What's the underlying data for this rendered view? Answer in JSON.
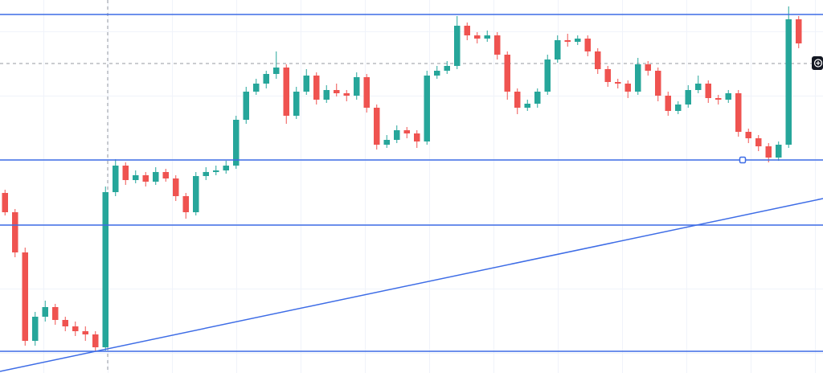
{
  "chart_data": {
    "type": "candlestick",
    "open": [
      224,
      200,
      150,
      40,
      70,
      82,
      66,
      58,
      52,
      48,
      32,
      225,
      258,
      240,
      246,
      238,
      250,
      242,
      220,
      200,
      245,
      250,
      252,
      258,
      315,
      350,
      360,
      372,
      380,
      320,
      350,
      370,
      340,
      352,
      348,
      345,
      368,
      330,
      284,
      290,
      302,
      298,
      288,
      370,
      376,
      382,
      432,
      420,
      416,
      420,
      396,
      350,
      330,
      335,
      350,
      390,
      414,
      412,
      416,
      400,
      378,
      362,
      360,
      350,
      384,
      376,
      345,
      326,
      334,
      352,
      360,
      342,
      340,
      348,
      300,
      292,
      282,
      268,
      284,
      440
    ],
    "high": [
      228,
      204,
      156,
      76,
      90,
      86,
      70,
      64,
      58,
      52,
      232,
      266,
      262,
      252,
      250,
      256,
      254,
      246,
      224,
      250,
      256,
      258,
      264,
      320,
      356,
      366,
      376,
      400,
      384,
      356,
      378,
      374,
      358,
      360,
      352,
      374,
      372,
      334,
      296,
      308,
      306,
      302,
      376,
      382,
      388,
      444,
      436,
      424,
      426,
      424,
      400,
      354,
      340,
      354,
      396,
      420,
      422,
      420,
      420,
      404,
      382,
      366,
      364,
      392,
      388,
      380,
      350,
      338,
      358,
      370,
      364,
      346,
      352,
      352,
      304,
      296,
      286,
      288,
      456,
      444
    ],
    "low": [
      196,
      144,
      34,
      34,
      64,
      60,
      52,
      46,
      40,
      27,
      28,
      220,
      234,
      236,
      232,
      234,
      238,
      214,
      192,
      196,
      240,
      246,
      248,
      254,
      310,
      346,
      354,
      366,
      310,
      316,
      346,
      334,
      336,
      344,
      338,
      340,
      324,
      278,
      280,
      286,
      292,
      280,
      284,
      366,
      372,
      378,
      414,
      410,
      412,
      390,
      340,
      322,
      326,
      330,
      346,
      386,
      406,
      408,
      394,
      372,
      356,
      354,
      342,
      346,
      370,
      338,
      320,
      322,
      330,
      348,
      336,
      334,
      336,
      294,
      286,
      276,
      262,
      264,
      280,
      404
    ],
    "close": [
      200,
      150,
      40,
      70,
      82,
      66,
      58,
      52,
      48,
      32,
      225,
      258,
      240,
      246,
      238,
      250,
      242,
      220,
      200,
      245,
      250,
      252,
      258,
      315,
      350,
      360,
      372,
      380,
      320,
      350,
      370,
      340,
      352,
      348,
      345,
      368,
      330,
      284,
      290,
      302,
      298,
      288,
      370,
      376,
      382,
      432,
      420,
      416,
      420,
      396,
      350,
      330,
      335,
      350,
      390,
      414,
      412,
      416,
      400,
      378,
      362,
      360,
      350,
      384,
      376,
      345,
      326,
      334,
      352,
      360,
      342,
      340,
      348,
      300,
      292,
      282,
      268,
      284,
      440,
      410
    ],
    "up_color": "#26a69a",
    "down_color": "#ef5350",
    "line_color": "#3d6ce6",
    "xlim": [
      0,
      81.92
    ],
    "ylim": [
      0,
      464
    ],
    "levels": [
      446,
      265,
      184,
      27
    ],
    "trendline": {
      "x": [
        0,
        81.92
      ],
      "y": [
        2,
        217
      ]
    },
    "crosshair": {
      "x": 10.72,
      "y": 385
    },
    "marker": {
      "x": 73.92,
      "y": 265
    }
  }
}
